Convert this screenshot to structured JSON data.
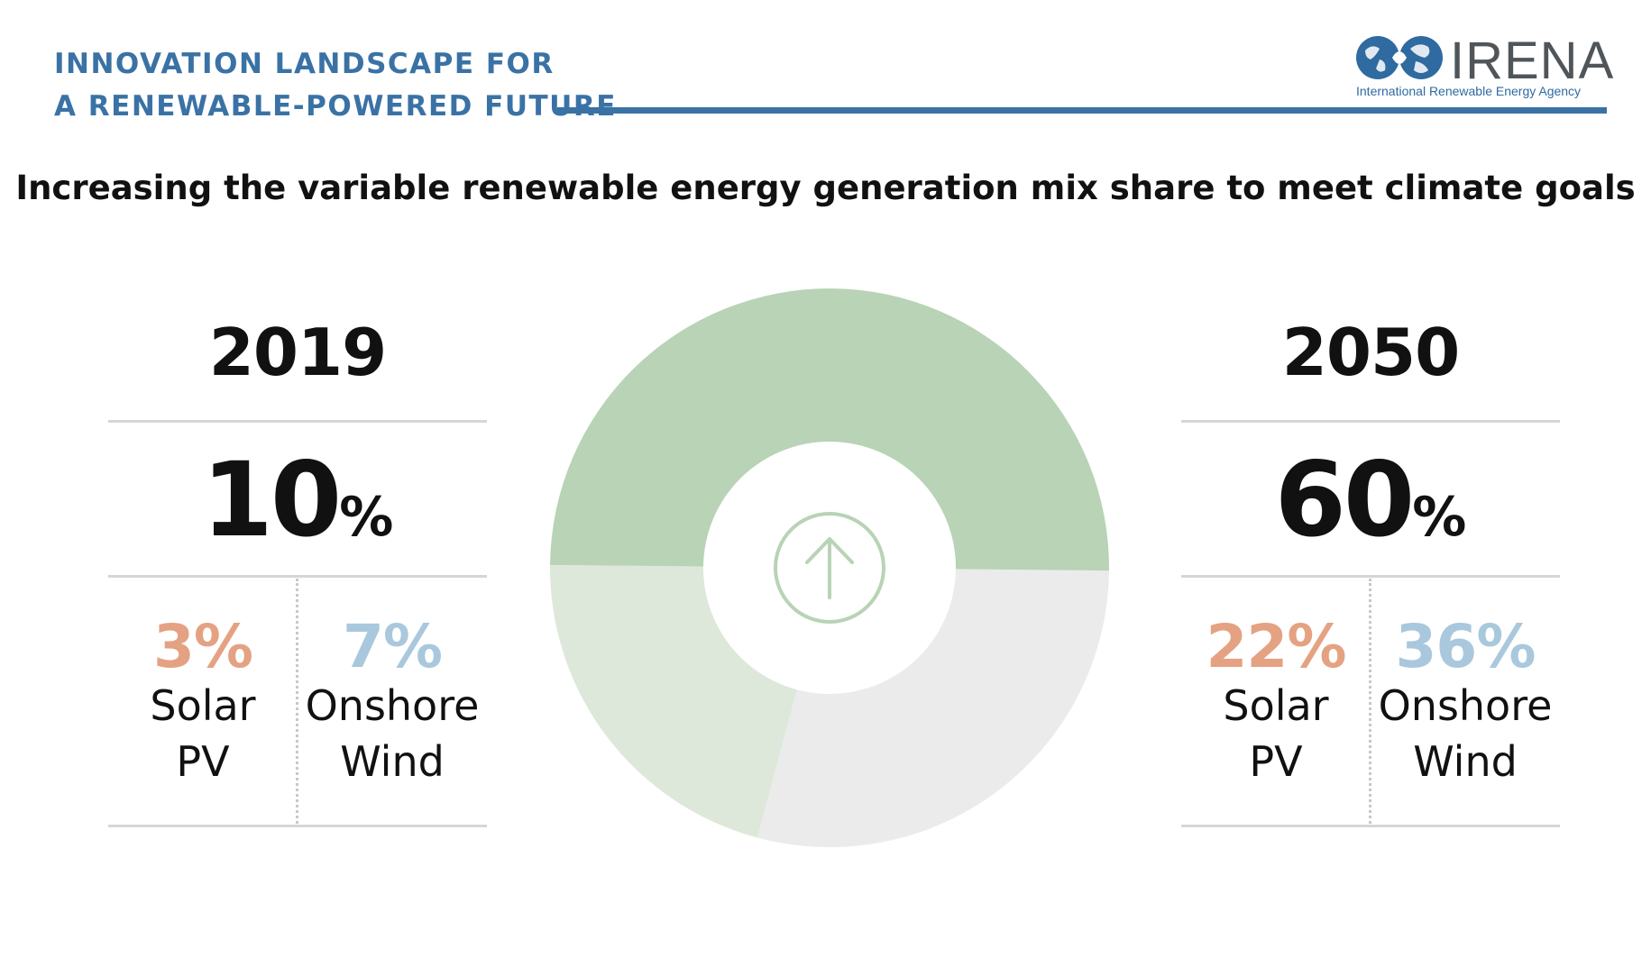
{
  "header": {
    "line1": "INNOVATION LANDSCAPE FOR",
    "line2": "A RENEWABLE-POWERED FUTURE"
  },
  "logo": {
    "name": "IRENA",
    "tagline": "International Renewable Energy Agency"
  },
  "colors": {
    "header_blue": "#3a72a5",
    "solar": "#e4a283",
    "wind": "#a9c8dd",
    "share_2050": "#b8d3b5",
    "share_2019": "#dde8da",
    "remainder": "#ebebeb",
    "arrow": "#b8d3b5"
  },
  "chart_data": {
    "type": "pie",
    "title": "Increasing the variable renewable energy generation mix share to meet climate goals",
    "years": [
      "2019",
      "2050"
    ],
    "series": [
      {
        "name": "Solar PV",
        "values": [
          3,
          22
        ]
      },
      {
        "name": "Onshore Wind",
        "values": [
          7,
          36
        ]
      }
    ],
    "totals": [
      10,
      60
    ],
    "donut": {
      "center_icon": "up-arrow-circle-icon",
      "rings": [
        {
          "year": "2050",
          "value": 60
        },
        {
          "year": "2019",
          "value": 10
        }
      ]
    }
  },
  "panels": {
    "left": {
      "year": "2019",
      "total": "10",
      "pct": "%",
      "solar": {
        "value": "3%",
        "line1": "Solar",
        "line2": "PV"
      },
      "wind": {
        "value": "7%",
        "line1": "Onshore",
        "line2": "Wind"
      }
    },
    "right": {
      "year": "2050",
      "total": "60",
      "pct": "%",
      "solar": {
        "value": "22%",
        "line1": "Solar",
        "line2": "PV"
      },
      "wind": {
        "value": "36%",
        "line1": "Onshore",
        "line2": "Wind"
      }
    }
  }
}
